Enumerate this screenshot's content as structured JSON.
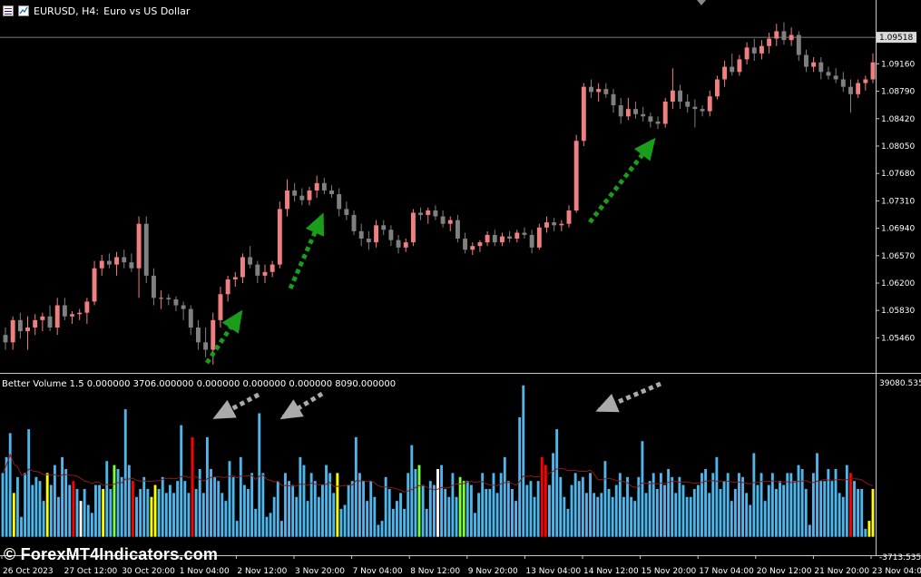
{
  "header": {
    "symbol": "EURUSD, H4:",
    "description": "Euro vs US Dollar"
  },
  "indicator": {
    "header_text": "Better Volume 1.5 0.000000 3706.000000 0.000000 0.000000 0.000000 8090.000000"
  },
  "watermark": "© ForexMT4Indicators.com",
  "colors": {
    "background": "#000000",
    "bull_candle": "#f08080",
    "bear_candle": "#808080",
    "volume_blue": "#4fb6ec",
    "volume_red": "#ff0000",
    "volume_white": "#ffffff",
    "volume_green": "#7cff3c",
    "volume_yellow": "#ffff00",
    "ma_line": "#8b1a1a",
    "arrow_green": "#1a9e1a",
    "arrow_gray": "#aaaaaa",
    "grid": "#c8c8c8"
  },
  "chart_data": [
    {
      "type": "candlestick",
      "symbol": "EURUSD",
      "timeframe": "H4",
      "current_price": "1.09518",
      "y_ticks": [
        "1.09160",
        "1.08790",
        "1.08420",
        "1.08050",
        "1.07680",
        "1.07310",
        "1.06940",
        "1.06570",
        "1.06200",
        "1.05830",
        "1.05460"
      ],
      "ylim": [
        1.05,
        1.0985
      ],
      "x_ticks": [
        "26 Oct 2023",
        "27 Oct 12:00",
        "30 Oct 20:00",
        "1 Nov 04:00",
        "2 Nov 12:00",
        "3 Nov 20:00",
        "7 Nov 04:00",
        "8 Nov 12:00",
        "9 Nov 20:00",
        "13 Nov 04:00",
        "14 Nov 12:00",
        "15 Nov 20:00",
        "17 Nov 04:00",
        "20 Nov 12:00",
        "21 Nov 20:00",
        "23 Nov 04:00"
      ],
      "candles": [
        [
          1.055,
          1.056,
          1.053,
          1.054
        ],
        [
          1.054,
          1.0575,
          1.053,
          1.057
        ],
        [
          1.057,
          1.058,
          1.0545,
          1.0555
        ],
        [
          1.0555,
          1.0575,
          1.053,
          1.056
        ],
        [
          1.056,
          1.0578,
          1.055,
          1.057
        ],
        [
          1.057,
          1.058,
          1.0555,
          1.0575
        ],
        [
          1.0575,
          1.059,
          1.0555,
          1.056
        ],
        [
          1.056,
          1.06,
          1.055,
          1.059
        ],
        [
          1.059,
          1.06,
          1.057,
          1.0575
        ],
        [
          1.0575,
          1.0582,
          1.0565,
          1.0578
        ],
        [
          1.0578,
          1.0585,
          1.057,
          1.058
        ],
        [
          1.058,
          1.06,
          1.0565,
          1.0595
        ],
        [
          1.0595,
          1.065,
          1.059,
          1.064
        ],
        [
          1.064,
          1.0658,
          1.063,
          1.065
        ],
        [
          1.065,
          1.066,
          1.064,
          1.0645
        ],
        [
          1.0645,
          1.0662,
          1.063,
          1.0655
        ],
        [
          1.0655,
          1.0665,
          1.064,
          1.0648
        ],
        [
          1.0648,
          1.066,
          1.0635,
          1.064
        ],
        [
          1.064,
          1.071,
          1.06,
          1.07
        ],
        [
          1.07,
          1.071,
          1.062,
          1.063
        ],
        [
          1.063,
          1.064,
          1.059,
          1.06
        ],
        [
          1.06,
          1.061,
          1.0585,
          1.06
        ],
        [
          1.06,
          1.0605,
          1.059,
          1.0598
        ],
        [
          1.0598,
          1.0602,
          1.0582,
          1.059
        ],
        [
          1.059,
          1.0595,
          1.057,
          1.0585
        ],
        [
          1.0585,
          1.059,
          1.055,
          1.056
        ],
        [
          1.056,
          1.057,
          1.053,
          1.054
        ],
        [
          1.054,
          1.056,
          1.052,
          1.053
        ],
        [
          1.053,
          1.058,
          1.051,
          1.057
        ],
        [
          1.057,
          1.0615,
          1.056,
          1.0605
        ],
        [
          1.0605,
          1.063,
          1.0595,
          1.0625
        ],
        [
          1.0625,
          1.0635,
          1.0615,
          1.0628
        ],
        [
          1.0628,
          1.066,
          1.062,
          1.0655
        ],
        [
          1.0655,
          1.067,
          1.064,
          1.0645
        ],
        [
          1.0645,
          1.065,
          1.062,
          1.063
        ],
        [
          1.063,
          1.0645,
          1.062,
          1.0635
        ],
        [
          1.0635,
          1.065,
          1.0628,
          1.0645
        ],
        [
          1.0645,
          1.073,
          1.064,
          1.072
        ],
        [
          1.072,
          1.076,
          1.071,
          1.0745
        ],
        [
          1.0745,
          1.0755,
          1.073,
          1.0738
        ],
        [
          1.0738,
          1.0748,
          1.0725,
          1.0732
        ],
        [
          1.0732,
          1.075,
          1.0725,
          1.0745
        ],
        [
          1.0745,
          1.0765,
          1.0735,
          1.0755
        ],
        [
          1.0755,
          1.0762,
          1.074,
          1.0745
        ],
        [
          1.0745,
          1.0752,
          1.0735,
          1.074
        ],
        [
          1.074,
          1.0748,
          1.071,
          1.072
        ],
        [
          1.072,
          1.073,
          1.0705,
          1.0712
        ],
        [
          1.0712,
          1.0718,
          1.0685,
          1.069
        ],
        [
          1.069,
          1.07,
          1.067,
          1.068
        ],
        [
          1.068,
          1.069,
          1.0665,
          1.0675
        ],
        [
          1.0675,
          1.0705,
          1.0668,
          1.0698
        ],
        [
          1.0698,
          1.0705,
          1.0685,
          1.0692
        ],
        [
          1.0692,
          1.0698,
          1.067,
          1.0678
        ],
        [
          1.0678,
          1.0685,
          1.066,
          1.0668
        ],
        [
          1.0668,
          1.068,
          1.0662,
          1.0675
        ],
        [
          1.0675,
          1.072,
          1.067,
          1.0715
        ],
        [
          1.0715,
          1.0722,
          1.0705,
          1.0712
        ],
        [
          1.0712,
          1.0722,
          1.07,
          1.0718
        ],
        [
          1.0718,
          1.0725,
          1.0705,
          1.071
        ],
        [
          1.071,
          1.0718,
          1.0695,
          1.07
        ],
        [
          1.07,
          1.071,
          1.069,
          1.0705
        ],
        [
          1.0705,
          1.0712,
          1.0675,
          1.068
        ],
        [
          1.068,
          1.0688,
          1.066,
          1.0665
        ],
        [
          1.0665,
          1.0675,
          1.0658,
          1.067
        ],
        [
          1.067,
          1.0678,
          1.0662,
          1.0675
        ],
        [
          1.0675,
          1.069,
          1.067,
          1.0685
        ],
        [
          1.0685,
          1.0692,
          1.067,
          1.0675
        ],
        [
          1.0675,
          1.0688,
          1.067,
          1.0683
        ],
        [
          1.0683,
          1.069,
          1.0675,
          1.068
        ],
        [
          1.068,
          1.0692,
          1.0675,
          1.0688
        ],
        [
          1.0688,
          1.0695,
          1.068,
          1.0685
        ],
        [
          1.0685,
          1.0692,
          1.066,
          1.0668
        ],
        [
          1.0668,
          1.07,
          1.0665,
          1.0695
        ],
        [
          1.0695,
          1.071,
          1.0688,
          1.0702
        ],
        [
          1.0702,
          1.0708,
          1.069,
          1.0698
        ],
        [
          1.0698,
          1.0705,
          1.069,
          1.07
        ],
        [
          1.07,
          1.0725,
          1.0695,
          1.0718
        ],
        [
          1.0718,
          1.082,
          1.0715,
          1.0812
        ],
        [
          1.0812,
          1.089,
          1.0805,
          1.0885
        ],
        [
          1.0885,
          1.0895,
          1.087,
          1.0878
        ],
        [
          1.0878,
          1.089,
          1.0865,
          1.0882
        ],
        [
          1.0882,
          1.089,
          1.087,
          1.0875
        ],
        [
          1.0875,
          1.0882,
          1.085,
          1.086
        ],
        [
          1.086,
          1.087,
          1.0835,
          1.0845
        ],
        [
          1.0845,
          1.087,
          1.084,
          1.0855
        ],
        [
          1.0855,
          1.0865,
          1.0842,
          1.0848
        ],
        [
          1.0848,
          1.0858,
          1.0838,
          1.0845
        ],
        [
          1.0845,
          1.085,
          1.083,
          1.0838
        ],
        [
          1.0838,
          1.0845,
          1.0828,
          1.0835
        ],
        [
          1.0835,
          1.087,
          1.083,
          1.0865
        ],
        [
          1.0865,
          1.091,
          1.0855,
          1.088
        ],
        [
          1.088,
          1.0888,
          1.0855,
          1.0865
        ],
        [
          1.0865,
          1.0875,
          1.085,
          1.0858
        ],
        [
          1.0858,
          1.0868,
          1.083,
          1.0855
        ],
        [
          1.0855,
          1.086,
          1.0845,
          1.0852
        ],
        [
          1.0852,
          1.088,
          1.0845,
          1.0872
        ],
        [
          1.0872,
          1.09,
          1.0868,
          1.0895
        ],
        [
          1.0895,
          1.092,
          1.0885,
          1.0912
        ],
        [
          1.0912,
          1.093,
          1.09,
          1.0905
        ],
        [
          1.0905,
          1.0928,
          1.09,
          1.0922
        ],
        [
          1.0922,
          1.0945,
          1.0915,
          1.0938
        ],
        [
          1.0938,
          1.095,
          1.092,
          1.093
        ],
        [
          1.093,
          1.0948,
          1.0922,
          1.094
        ],
        [
          1.094,
          1.0958,
          1.093,
          1.095
        ],
        [
          1.095,
          1.097,
          1.094,
          1.096
        ],
        [
          1.096,
          1.0972,
          1.0942,
          1.0948
        ],
        [
          1.0948,
          1.0965,
          1.094,
          1.0955
        ],
        [
          1.0955,
          1.096,
          1.092,
          1.0928
        ],
        [
          1.0928,
          1.0935,
          1.0905,
          1.0912
        ],
        [
          1.0912,
          1.0925,
          1.0905,
          1.0918
        ],
        [
          1.0918,
          1.0925,
          1.0895,
          1.0905
        ],
        [
          1.0905,
          1.0912,
          1.0895,
          1.09
        ],
        [
          1.09,
          1.091,
          1.089,
          1.0895
        ],
        [
          1.0895,
          1.0905,
          1.0878,
          1.0885
        ],
        [
          1.0885,
          1.0895,
          1.085,
          1.0875
        ],
        [
          1.0875,
          1.0895,
          1.087,
          1.089
        ],
        [
          1.089,
          1.09,
          1.088,
          1.0895
        ],
        [
          1.0895,
          1.093,
          1.089,
          1.0918
        ]
      ],
      "annotations": [
        "green dotted up arrows",
        "gray dotted arrows pointing at red volume bars"
      ]
    },
    {
      "type": "bar",
      "name": "Better Volume 1.5",
      "y_ticks": [
        "39080.5356",
        "-3713.5356"
      ],
      "ylim": [
        -3713.5356,
        39080.5356
      ],
      "color_keys": [
        "blue",
        "red",
        "white",
        "green",
        "yellow"
      ],
      "values": [
        16000,
        20000,
        26000,
        11000,
        15000,
        5000,
        16000,
        27000,
        13000,
        15000,
        14000,
        9000,
        16000,
        13000,
        18000,
        10000,
        20000,
        17000,
        13000,
        14000,
        12000,
        9000,
        12000,
        8000,
        6000,
        13000,
        13000,
        12000,
        19000,
        12000,
        18000,
        17000,
        15000,
        32000,
        18000,
        14000,
        10000,
        12000,
        15000,
        12000,
        10000,
        13000,
        12000,
        15000,
        11000,
        13000,
        11000,
        14000,
        28000,
        14000,
        11000,
        25000,
        12000,
        17000,
        11000,
        25000,
        17000,
        15000,
        14000,
        11000,
        9000,
        19000,
        15000,
        4000,
        20000,
        13000,
        12000,
        16000,
        7000,
        31000,
        16000,
        5000,
        6000,
        10000,
        14000,
        4000,
        16000,
        14000,
        13000,
        10000,
        20000,
        18000,
        9000,
        16000,
        14000,
        10000,
        13000,
        18000,
        16000,
        11000,
        16000,
        7000,
        8000,
        13000,
        14000,
        25000,
        16000,
        14000,
        9000,
        14000,
        10000,
        3000,
        4000,
        15000,
        12000,
        7000,
        9000,
        11000,
        7000,
        16000,
        23000,
        17000,
        18000,
        13000,
        7000,
        14000,
        13000,
        17000,
        18000,
        12000,
        10000,
        16000,
        10000,
        15000,
        14000,
        14000,
        13000,
        6000,
        11000,
        16000,
        12000,
        12000,
        16000,
        11000,
        16000,
        20000,
        14000,
        12000,
        9000,
        30000,
        38000,
        13000,
        14000,
        10000,
        14000,
        20000,
        18000,
        13000,
        21000,
        27000,
        15000,
        10000,
        7000,
        13000,
        16000,
        14000,
        15000,
        11000,
        16000,
        11000,
        10000,
        11000,
        19000,
        12000,
        10000,
        13000,
        16000,
        10000,
        15000,
        10000,
        9000,
        15000,
        24000,
        11000,
        14000,
        16000,
        12000,
        16000,
        13000,
        17000,
        15000,
        11000,
        15000,
        13000,
        10000,
        10000,
        12000,
        13000,
        16000,
        17000,
        11000,
        16000,
        20000,
        12000,
        14000,
        16000,
        9000,
        12000,
        16000,
        15000,
        11000,
        8000,
        21000,
        13000,
        16000,
        9000,
        13000,
        16000,
        12000,
        14000,
        13000,
        16000,
        16000,
        14000,
        18000,
        17000,
        12000,
        3000,
        16000,
        21000,
        14000,
        14000,
        17000,
        14000,
        17000,
        11000,
        10000,
        18000,
        16000,
        14000,
        12000,
        12000,
        2000,
        4000,
        12000
      ],
      "colors": [
        "b",
        "b",
        "b",
        "y",
        "b",
        "b",
        "b",
        "b",
        "b",
        "b",
        "b",
        "b",
        "y",
        "b",
        "b",
        "b",
        "b",
        "b",
        "b",
        "r",
        "b",
        "w",
        "b",
        "b",
        "b",
        "b",
        "b",
        "y",
        "b",
        "b",
        "g",
        "b",
        "b",
        "b",
        "b",
        "r",
        "b",
        "b",
        "b",
        "b",
        "y",
        "y",
        "b",
        "b",
        "b",
        "b",
        "b",
        "b",
        "b",
        "b",
        "b",
        "r",
        "b",
        "b",
        "b",
        "b",
        "b",
        "b",
        "b",
        "b",
        "b",
        "b",
        "b",
        "b",
        "b",
        "b",
        "b",
        "b",
        "b",
        "b",
        "b",
        "b",
        "b",
        "b",
        "b",
        "b",
        "b",
        "b",
        "b",
        "b",
        "b",
        "b",
        "b",
        "b",
        "b",
        "b",
        "b",
        "b",
        "b",
        "b",
        "y",
        "b",
        "b",
        "b",
        "b",
        "b",
        "b",
        "b",
        "b",
        "b",
        "b",
        "b",
        "b",
        "b",
        "b",
        "b",
        "b",
        "b",
        "b",
        "b",
        "b",
        "b",
        "g",
        "b",
        "b",
        "b",
        "b",
        "w",
        "b",
        "b",
        "b",
        "b",
        "b",
        "g",
        "g",
        "b",
        "b",
        "b",
        "b",
        "b",
        "b",
        "b",
        "b",
        "b",
        "b",
        "b",
        "b",
        "b",
        "b",
        "b",
        "b",
        "b",
        "b",
        "b",
        "b",
        "r",
        "r",
        "b",
        "b",
        "b",
        "b",
        "b",
        "b",
        "b",
        "b",
        "b",
        "b",
        "b",
        "b",
        "b",
        "b",
        "b",
        "b",
        "b",
        "b",
        "b",
        "b",
        "b",
        "b",
        "b",
        "b",
        "b",
        "b",
        "b",
        "b",
        "b",
        "b",
        "b",
        "b",
        "b",
        "b",
        "b",
        "b",
        "b",
        "b",
        "b",
        "b",
        "b",
        "b",
        "b",
        "b",
        "b",
        "b",
        "b",
        "b",
        "b",
        "b",
        "b",
        "b",
        "b",
        "b",
        "b",
        "b",
        "b",
        "b",
        "b",
        "b",
        "b",
        "b",
        "b",
        "b",
        "b",
        "b",
        "b",
        "b",
        "b",
        "b",
        "b",
        "b",
        "b",
        "b",
        "b",
        "b",
        "b",
        "b",
        "b",
        "b",
        "b",
        "r",
        "b",
        "b",
        "b",
        "b",
        "y",
        "y",
        "b"
      ]
    }
  ]
}
